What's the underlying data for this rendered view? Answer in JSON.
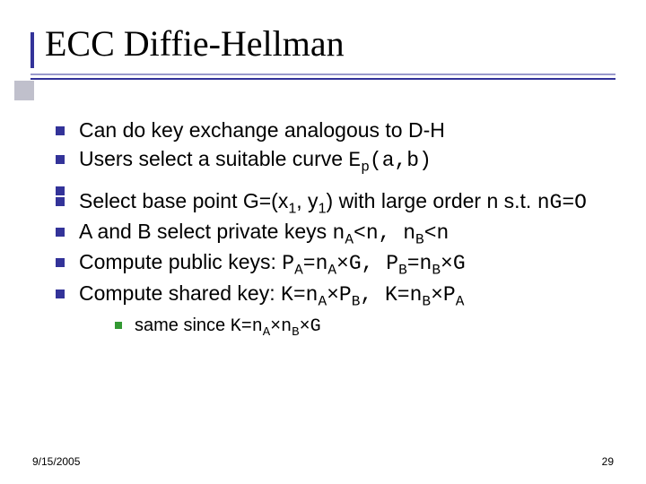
{
  "title": "ECC Diffie-Hellman",
  "colors": {
    "accent": "#333399",
    "accent_light": "#9999cc",
    "bullet2": "#339933",
    "shadow": "#c0c0cc",
    "text": "#000000",
    "background": "#ffffff"
  },
  "typography": {
    "title_family": "Times New Roman",
    "title_size_pt": 40,
    "body_family": "Verdana",
    "body_size_pt": 23,
    "sub_body_size_pt": 20,
    "mono_family": "Courier New",
    "footer_size_pt": 12
  },
  "bullets": {
    "b1_text": "Can do key exchange analogous to D-H",
    "b2_prefix": "Users select a suitable curve ",
    "b2_mono": "E",
    "b2_sub": "p",
    "b2_mono2": "(a,b)",
    "b3_p1": "Select base point G=(x",
    "b3_s1": "1",
    "b3_p2": ", y",
    "b3_s2": "1",
    "b3_p3": ") with large order n s.t. ",
    "b3_mono": "nG=O",
    "b4_p1": "A and B select private keys ",
    "b4_m1": "n",
    "b4_s1": "A",
    "b4_m2": "<n, n",
    "b4_s2": "B",
    "b4_m3": "<n",
    "b5_p1": "Compute public keys: ",
    "b5_m1": "P",
    "b5_s1": "A",
    "b5_m2": "=n",
    "b5_s2": "A",
    "b5_m3": "×G, P",
    "b5_s3": "B",
    "b5_m4": "=n",
    "b5_s4": "B",
    "b5_m5": "×G",
    "b6_p1": "Compute shared key: ",
    "b6_m1": "K=n",
    "b6_s1": "A",
    "b6_m2": "×P",
    "b6_s2": "B",
    "b6_m3": ", K=n",
    "b6_s3": "B",
    "b6_m4": "×P",
    "b6_s4": "A",
    "sub1_p1": "same since ",
    "sub1_m1": "K=n",
    "sub1_s1": "A",
    "sub1_m2": "×n",
    "sub1_s2": "B",
    "sub1_m3": "×G"
  },
  "footer": {
    "date": "9/15/2005",
    "page": "29"
  }
}
